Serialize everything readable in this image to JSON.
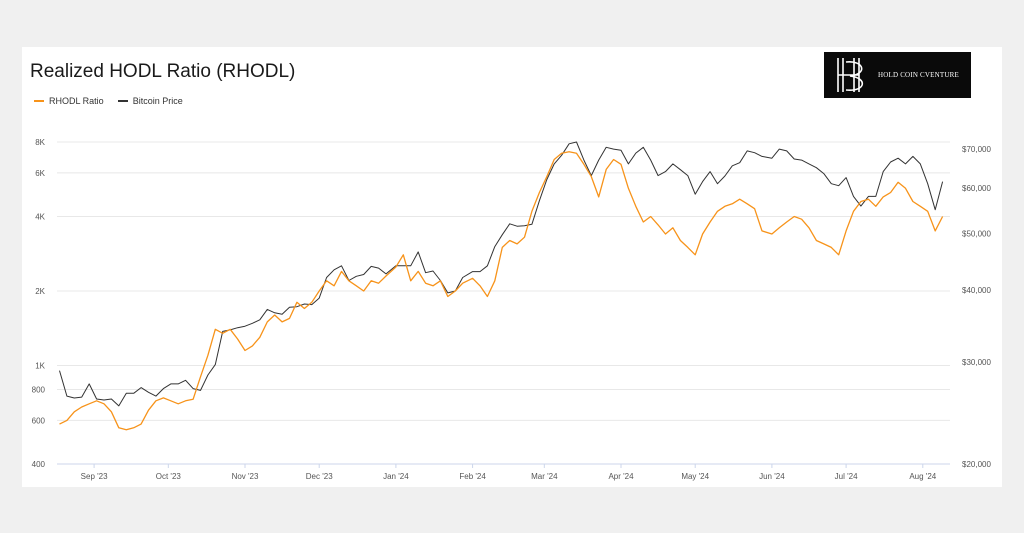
{
  "logo": {
    "text": "HOLD COIN CVENTURE"
  },
  "chart_data": {
    "type": "line",
    "title": "Realized HODL Ratio (RHODL)",
    "legend": {
      "placement": "top-left"
    },
    "grid": true,
    "series": [
      {
        "name": "RHODL Ratio",
        "axis": "left",
        "color": "#f7931a",
        "x": [
          "2023-08-18",
          "2023-08-21",
          "2023-08-24",
          "2023-08-27",
          "2023-08-30",
          "2023-09-02",
          "2023-09-05",
          "2023-09-08",
          "2023-09-11",
          "2023-09-14",
          "2023-09-17",
          "2023-09-20",
          "2023-09-23",
          "2023-09-26",
          "2023-09-29",
          "2023-10-02",
          "2023-10-05",
          "2023-10-08",
          "2023-10-11",
          "2023-10-14",
          "2023-10-17",
          "2023-10-20",
          "2023-10-23",
          "2023-10-26",
          "2023-10-29",
          "2023-11-01",
          "2023-11-04",
          "2023-11-07",
          "2023-11-10",
          "2023-11-13",
          "2023-11-16",
          "2023-11-19",
          "2023-11-22",
          "2023-11-25",
          "2023-11-28",
          "2023-12-01",
          "2023-12-04",
          "2023-12-07",
          "2023-12-10",
          "2023-12-13",
          "2023-12-16",
          "2023-12-19",
          "2023-12-22",
          "2023-12-25",
          "2023-12-28",
          "2024-01-01",
          "2024-01-04",
          "2024-01-07",
          "2024-01-10",
          "2024-01-13",
          "2024-01-16",
          "2024-01-19",
          "2024-01-22",
          "2024-01-25",
          "2024-01-28",
          "2024-02-01",
          "2024-02-04",
          "2024-02-07",
          "2024-02-10",
          "2024-02-13",
          "2024-02-16",
          "2024-02-19",
          "2024-02-22",
          "2024-02-25",
          "2024-02-28",
          "2024-03-02",
          "2024-03-05",
          "2024-03-08",
          "2024-03-11",
          "2024-03-14",
          "2024-03-17",
          "2024-03-20",
          "2024-03-23",
          "2024-03-26",
          "2024-03-29",
          "2024-04-01",
          "2024-04-04",
          "2024-04-07",
          "2024-04-10",
          "2024-04-13",
          "2024-04-16",
          "2024-04-19",
          "2024-04-22",
          "2024-04-25",
          "2024-04-28",
          "2024-05-01",
          "2024-05-04",
          "2024-05-07",
          "2024-05-10",
          "2024-05-13",
          "2024-05-16",
          "2024-05-19",
          "2024-05-22",
          "2024-05-25",
          "2024-05-28",
          "2024-06-01",
          "2024-06-04",
          "2024-06-07",
          "2024-06-10",
          "2024-06-13",
          "2024-06-16",
          "2024-06-19",
          "2024-06-22",
          "2024-06-25",
          "2024-06-28",
          "2024-07-01",
          "2024-07-04",
          "2024-07-07",
          "2024-07-10",
          "2024-07-13",
          "2024-07-16",
          "2024-07-19",
          "2024-07-22",
          "2024-07-25",
          "2024-07-28",
          "2024-07-31",
          "2024-08-03",
          "2024-08-06",
          "2024-08-09"
        ],
        "values": [
          580,
          600,
          650,
          680,
          700,
          720,
          700,
          650,
          560,
          550,
          560,
          580,
          660,
          720,
          740,
          720,
          700,
          720,
          730,
          900,
          1100,
          1400,
          1350,
          1400,
          1280,
          1150,
          1200,
          1300,
          1500,
          1600,
          1500,
          1550,
          1800,
          1700,
          1800,
          2000,
          2200,
          2100,
          2400,
          2200,
          2100,
          2000,
          2200,
          2150,
          2300,
          2500,
          2800,
          2200,
          2400,
          2150,
          2100,
          2200,
          1900,
          2000,
          2150,
          2250,
          2100,
          1900,
          2200,
          3000,
          3200,
          3100,
          3300,
          4200,
          5000,
          5800,
          6800,
          7200,
          7300,
          7200,
          6500,
          5800,
          4800,
          6200,
          6800,
          6500,
          5200,
          4400,
          3800,
          4000,
          3700,
          3400,
          3600,
          3200,
          3000,
          2800,
          3400,
          3800,
          4200,
          4400,
          4500,
          4700,
          4500,
          4300,
          3500,
          3400,
          3600,
          3800,
          4000,
          3900,
          3600,
          3200,
          3100,
          3000,
          2800,
          3500,
          4200,
          4600,
          4700,
          4400,
          4800,
          5000,
          5500,
          5200,
          4600,
          4400,
          4200,
          3500,
          4000
        ]
      },
      {
        "name": "Bitcoin Price",
        "axis": "right",
        "color": "#333333",
        "x": [
          "2023-08-18",
          "2023-08-21",
          "2023-08-24",
          "2023-08-27",
          "2023-08-30",
          "2023-09-02",
          "2023-09-05",
          "2023-09-08",
          "2023-09-11",
          "2023-09-14",
          "2023-09-17",
          "2023-09-20",
          "2023-09-23",
          "2023-09-26",
          "2023-09-29",
          "2023-10-02",
          "2023-10-05",
          "2023-10-08",
          "2023-10-11",
          "2023-10-14",
          "2023-10-17",
          "2023-10-20",
          "2023-10-23",
          "2023-10-26",
          "2023-10-29",
          "2023-11-01",
          "2023-11-04",
          "2023-11-07",
          "2023-11-10",
          "2023-11-13",
          "2023-11-16",
          "2023-11-19",
          "2023-11-22",
          "2023-11-25",
          "2023-11-28",
          "2023-12-01",
          "2023-12-04",
          "2023-12-07",
          "2023-12-10",
          "2023-12-13",
          "2023-12-16",
          "2023-12-19",
          "2023-12-22",
          "2023-12-25",
          "2023-12-28",
          "2024-01-01",
          "2024-01-04",
          "2024-01-07",
          "2024-01-10",
          "2024-01-13",
          "2024-01-16",
          "2024-01-19",
          "2024-01-22",
          "2024-01-25",
          "2024-01-28",
          "2024-02-01",
          "2024-02-04",
          "2024-02-07",
          "2024-02-10",
          "2024-02-13",
          "2024-02-16",
          "2024-02-19",
          "2024-02-22",
          "2024-02-25",
          "2024-02-28",
          "2024-03-02",
          "2024-03-05",
          "2024-03-08",
          "2024-03-11",
          "2024-03-14",
          "2024-03-17",
          "2024-03-20",
          "2024-03-23",
          "2024-03-26",
          "2024-03-29",
          "2024-04-01",
          "2024-04-04",
          "2024-04-07",
          "2024-04-10",
          "2024-04-13",
          "2024-04-16",
          "2024-04-19",
          "2024-04-22",
          "2024-04-25",
          "2024-04-28",
          "2024-05-01",
          "2024-05-04",
          "2024-05-07",
          "2024-05-10",
          "2024-05-13",
          "2024-05-16",
          "2024-05-19",
          "2024-05-22",
          "2024-05-25",
          "2024-05-28",
          "2024-06-01",
          "2024-06-04",
          "2024-06-07",
          "2024-06-10",
          "2024-06-13",
          "2024-06-16",
          "2024-06-19",
          "2024-06-22",
          "2024-06-25",
          "2024-06-28",
          "2024-07-01",
          "2024-07-04",
          "2024-07-07",
          "2024-07-10",
          "2024-07-13",
          "2024-07-16",
          "2024-07-19",
          "2024-07-22",
          "2024-07-25",
          "2024-07-28",
          "2024-07-31",
          "2024-08-03",
          "2024-08-06",
          "2024-08-09"
        ],
        "values": [
          29000,
          26200,
          26000,
          26100,
          27500,
          25900,
          25800,
          25900,
          25200,
          26500,
          26500,
          27100,
          26600,
          26200,
          27000,
          27500,
          27500,
          27900,
          27000,
          26800,
          28500,
          29700,
          33900,
          34100,
          34400,
          34600,
          35000,
          35500,
          37000,
          36500,
          36300,
          37300,
          37400,
          37800,
          37700,
          38700,
          42000,
          43300,
          44000,
          41500,
          42200,
          42500,
          43900,
          43600,
          42600,
          44000,
          44000,
          44000,
          46500,
          42800,
          43100,
          41500,
          39500,
          39800,
          42000,
          43000,
          43000,
          44000,
          47500,
          49800,
          52000,
          51500,
          51600,
          51900,
          57000,
          62000,
          66000,
          68300,
          71500,
          72000,
          67000,
          63000,
          67000,
          70500,
          70000,
          69700,
          66000,
          68900,
          70500,
          67000,
          63000,
          64000,
          66000,
          64500,
          63000,
          58500,
          61500,
          64000,
          61000,
          62900,
          65500,
          66300,
          69500,
          69000,
          68000,
          67500,
          70000,
          69500,
          67300,
          67000,
          66000,
          65000,
          63500,
          61000,
          60500,
          62500,
          58000,
          55800,
          58000,
          58000,
          64000,
          66500,
          67500,
          66000,
          68000,
          66000,
          61000,
          55000,
          61500
        ]
      }
    ],
    "x_axis": {
      "tick_labels": [
        "Sep '23",
        "Oct '23",
        "Nov '23",
        "Dec '23",
        "Jan '24",
        "Feb '24",
        "Mar '24",
        "Apr '24",
        "May '24",
        "Jun '24",
        "Jul '24",
        "Aug '24"
      ],
      "tick_dates": [
        "2023-09-01",
        "2023-10-01",
        "2023-11-01",
        "2023-12-01",
        "2024-01-01",
        "2024-02-01",
        "2024-03-01",
        "2024-04-01",
        "2024-05-01",
        "2024-06-01",
        "2024-07-01",
        "2024-08-01"
      ],
      "range": [
        "2023-08-17",
        "2024-08-12"
      ]
    },
    "y_left": {
      "scale": "log",
      "range": [
        400,
        8000
      ],
      "ticks": [
        400,
        600,
        800,
        1000,
        2000,
        4000,
        6000,
        8000
      ],
      "tick_labels": [
        "400",
        "600",
        "800",
        "1K",
        "2K",
        "4K",
        "6K",
        "8K"
      ]
    },
    "y_right": {
      "scale": "log",
      "range": [
        20000,
        72000
      ],
      "ticks": [
        20000,
        30000,
        40000,
        50000,
        60000,
        70000
      ],
      "tick_labels": [
        "$20,000",
        "$30,000",
        "$40,000",
        "$50,000",
        "$60,000",
        "$70,000"
      ]
    }
  }
}
